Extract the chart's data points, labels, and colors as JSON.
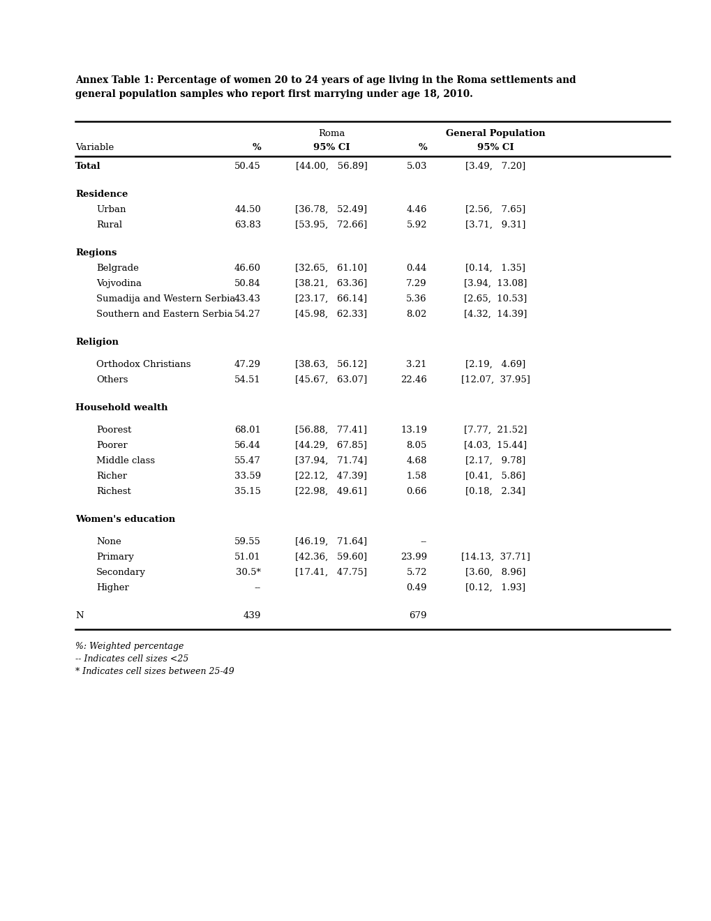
{
  "title_line1": "Annex Table 1: Percentage of women 20 to 24 years of age living in the Roma settlements and",
  "title_line2": "general population samples who report first marrying under age 18, 2010.",
  "background_color": "#ffffff",
  "footnotes": [
    "%: Weighted percentage",
    "-- Indicates cell sizes <25",
    "* Indicates cell sizes between 25-49"
  ],
  "rows": [
    {
      "label": "Total",
      "indent": 0,
      "bold": true,
      "section": false,
      "roma_pct": "50.45",
      "roma_ci": "[44.00,   56.89]",
      "gp_pct": "5.03",
      "gp_ci": "[3.49,   7.20]"
    },
    {
      "spacer": true,
      "size": "normal"
    },
    {
      "label": "Residence",
      "indent": 0,
      "bold": true,
      "section": true
    },
    {
      "label": "Urban",
      "indent": 1,
      "bold": false,
      "section": false,
      "roma_pct": "44.50",
      "roma_ci": "[36.78,   52.49]",
      "gp_pct": "4.46",
      "gp_ci": "[2.56,   7.65]"
    },
    {
      "label": "Rural",
      "indent": 1,
      "bold": false,
      "section": false,
      "roma_pct": "63.83",
      "roma_ci": "[53.95,   72.66]",
      "gp_pct": "5.92",
      "gp_ci": "[3.71,   9.31]"
    },
    {
      "spacer": true,
      "size": "normal"
    },
    {
      "label": "Regions",
      "indent": 0,
      "bold": true,
      "section": true
    },
    {
      "label": "Belgrade",
      "indent": 1,
      "bold": false,
      "section": false,
      "roma_pct": "46.60",
      "roma_ci": "[32.65,   61.10]",
      "gp_pct": "0.44",
      "gp_ci": "[0.14,   1.35]"
    },
    {
      "label": "Vojvodina",
      "indent": 1,
      "bold": false,
      "section": false,
      "roma_pct": "50.84",
      "roma_ci": "[38.21,   63.36]",
      "gp_pct": "7.29",
      "gp_ci": "[3.94,  13.08]"
    },
    {
      "label": "Sumadija and Western Serbia",
      "indent": 1,
      "bold": false,
      "section": false,
      "roma_pct": "43.43",
      "roma_ci": "[23.17,   66.14]",
      "gp_pct": "5.36",
      "gp_ci": "[2.65,  10.53]"
    },
    {
      "label": "Southern and Eastern Serbia",
      "indent": 1,
      "bold": false,
      "section": false,
      "roma_pct": "54.27",
      "roma_ci": "[45.98,   62.33]",
      "gp_pct": "8.02",
      "gp_ci": "[4.32,  14.39]"
    },
    {
      "spacer": true,
      "size": "normal"
    },
    {
      "label": "Religion",
      "indent": 0,
      "bold": true,
      "section": true
    },
    {
      "spacer": true,
      "size": "small"
    },
    {
      "label": "Orthodox Christians",
      "indent": 1,
      "bold": false,
      "section": false,
      "roma_pct": "47.29",
      "roma_ci": "[38.63,   56.12]",
      "gp_pct": "3.21",
      "gp_ci": "[2.19,   4.69]"
    },
    {
      "label": "Others",
      "indent": 1,
      "bold": false,
      "section": false,
      "roma_pct": "54.51",
      "roma_ci": "[45.67,   63.07]",
      "gp_pct": "22.46",
      "gp_ci": "[12.07,  37.95]"
    },
    {
      "spacer": true,
      "size": "normal"
    },
    {
      "label": "Household wealth",
      "indent": 0,
      "bold": true,
      "section": true
    },
    {
      "spacer": true,
      "size": "small"
    },
    {
      "label": "Poorest",
      "indent": 1,
      "bold": false,
      "section": false,
      "roma_pct": "68.01",
      "roma_ci": "[56.88,   77.41]",
      "gp_pct": "13.19",
      "gp_ci": "[7.77,  21.52]"
    },
    {
      "label": "Poorer",
      "indent": 1,
      "bold": false,
      "section": false,
      "roma_pct": "56.44",
      "roma_ci": "[44.29,   67.85]",
      "gp_pct": "8.05",
      "gp_ci": "[4.03,  15.44]"
    },
    {
      "label": "Middle class",
      "indent": 1,
      "bold": false,
      "section": false,
      "roma_pct": "55.47",
      "roma_ci": "[37.94,   71.74]",
      "gp_pct": "4.68",
      "gp_ci": "[2.17,   9.78]"
    },
    {
      "label": "Richer",
      "indent": 1,
      "bold": false,
      "section": false,
      "roma_pct": "33.59",
      "roma_ci": "[22.12,   47.39]",
      "gp_pct": "1.58",
      "gp_ci": "[0.41,   5.86]"
    },
    {
      "label": "Richest",
      "indent": 1,
      "bold": false,
      "section": false,
      "roma_pct": "35.15",
      "roma_ci": "[22.98,   49.61]",
      "gp_pct": "0.66",
      "gp_ci": "[0.18,   2.34]"
    },
    {
      "spacer": true,
      "size": "normal"
    },
    {
      "label": "Women's education",
      "indent": 0,
      "bold": true,
      "section": true
    },
    {
      "spacer": true,
      "size": "small"
    },
    {
      "label": "None",
      "indent": 1,
      "bold": false,
      "section": false,
      "roma_pct": "59.55",
      "roma_ci": "[46.19,   71.64]",
      "gp_pct": "--",
      "gp_ci": ""
    },
    {
      "label": "Primary",
      "indent": 1,
      "bold": false,
      "section": false,
      "roma_pct": "51.01",
      "roma_ci": "[42.36,   59.60]",
      "gp_pct": "23.99",
      "gp_ci": "[14.13,  37.71]"
    },
    {
      "label": "Secondary",
      "indent": 1,
      "bold": false,
      "section": false,
      "roma_pct": "30.5*",
      "roma_ci": "[17.41,   47.75]",
      "gp_pct": "5.72",
      "gp_ci": "[3.60,   8.96]"
    },
    {
      "label": "Higher",
      "indent": 1,
      "bold": false,
      "section": false,
      "roma_pct": "--",
      "roma_ci": "",
      "gp_pct": "0.49",
      "gp_ci": "[0.12,   1.93]"
    },
    {
      "spacer": true,
      "size": "normal"
    },
    {
      "label": "N",
      "indent": 0,
      "bold": false,
      "section": false,
      "n_row": true,
      "roma_pct": "439",
      "roma_ci": "",
      "gp_pct": "679",
      "gp_ci": ""
    }
  ]
}
